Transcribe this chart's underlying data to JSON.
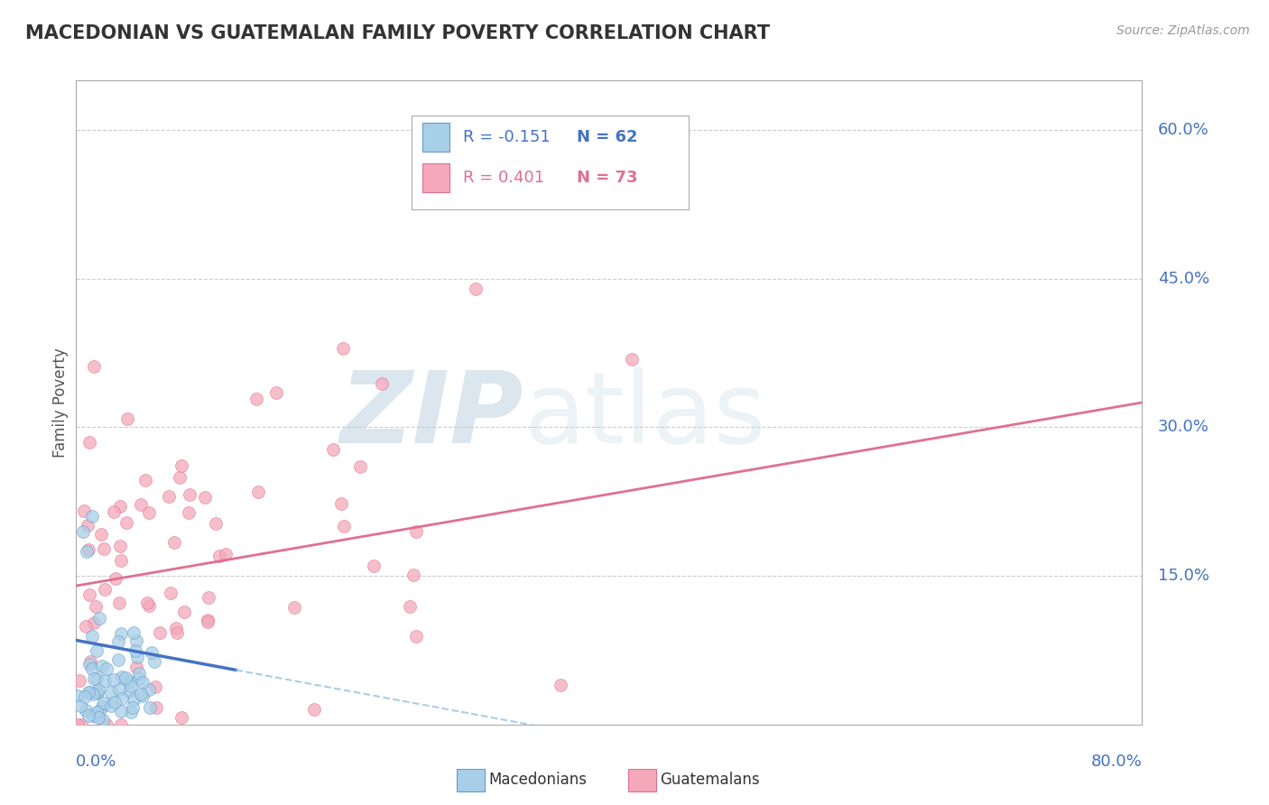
{
  "title": "MACEDONIAN VS GUATEMALAN FAMILY POVERTY CORRELATION CHART",
  "source": "Source: ZipAtlas.com",
  "xlabel_bottom_left": "0.0%",
  "xlabel_bottom_right": "80.0%",
  "ylabel": "Family Poverty",
  "y_tick_labels": [
    "15.0%",
    "30.0%",
    "45.0%",
    "60.0%"
  ],
  "y_tick_values": [
    0.15,
    0.3,
    0.45,
    0.6
  ],
  "x_range": [
    0.0,
    0.8
  ],
  "y_range": [
    0.0,
    0.65
  ],
  "legend_mac_R": "R = -0.151",
  "legend_mac_N": "N = 62",
  "legend_gua_R": "R = 0.401",
  "legend_gua_N": "N = 73",
  "mac_color": "#a8cfe8",
  "mac_edge_color": "#6699cc",
  "gua_color": "#f4a8ba",
  "gua_edge_color": "#e07090",
  "mac_line_color_solid": "#4472c4",
  "mac_line_color_dashed": "#a8cfe8",
  "gua_line_color": "#e07090",
  "mac_R": -0.151,
  "mac_N": 62,
  "gua_R": 0.401,
  "gua_N": 73,
  "watermark_zip": "ZIP",
  "watermark_atlas": "atlas",
  "background_color": "#ffffff",
  "grid_color": "#cccccc",
  "title_color": "#333333",
  "axis_label_color": "#4472c4",
  "legend_R_mac_color": "#4472c4",
  "legend_R_gua_color": "#e07090",
  "legend_N_color": "#333333",
  "mac_line_start_x": 0.0,
  "mac_line_solid_end_x": 0.12,
  "mac_line_dashed_end_x": 0.45,
  "gua_line_start_x": 0.0,
  "gua_line_end_x": 0.8,
  "gua_line_start_y": 0.14,
  "gua_line_end_y": 0.325
}
